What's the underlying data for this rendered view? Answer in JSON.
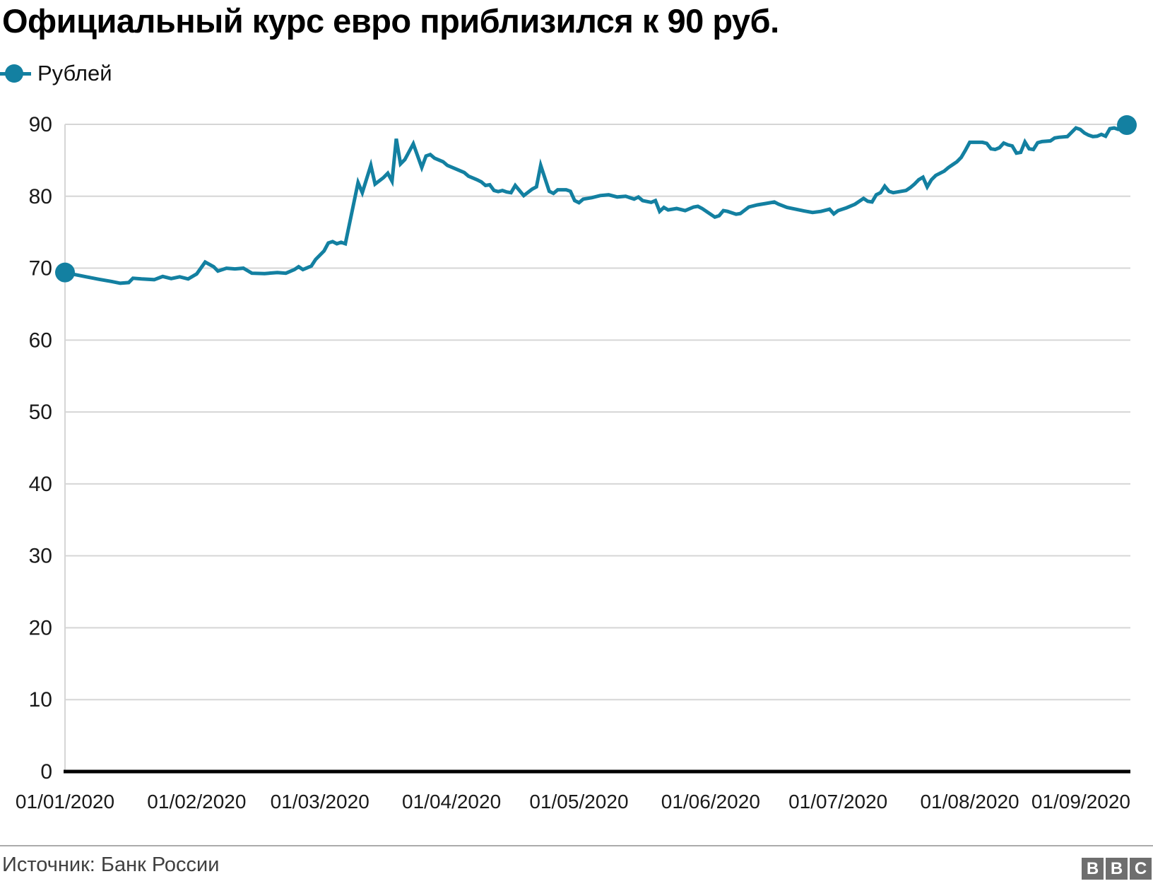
{
  "header": {
    "title": "Официальный курс евро приблизился к 90 руб."
  },
  "legend": {
    "label": "Рублей"
  },
  "footer": {
    "source": "Источник: Банк России",
    "logo_letters": [
      "B",
      "B",
      "C"
    ]
  },
  "colors": {
    "accent": "#1380A1",
    "grid": "#d6d6d6",
    "axis": "#000000",
    "tick_text": "#1a1a1a",
    "source_text": "#404040",
    "logo_gray": "#6e6e6e"
  },
  "chart_data": {
    "type": "line",
    "title": "Официальный курс евро приблизился к 90 руб.",
    "xlabel": "",
    "ylabel": "",
    "x_unit": "days since 01/01/2020",
    "x_range_days": 250,
    "ylim": [
      0,
      90
    ],
    "grid": "horizontal",
    "legend_position": "top-left",
    "y_ticks": [
      0,
      10,
      20,
      30,
      40,
      50,
      60,
      70,
      80,
      90
    ],
    "x_ticks": [
      {
        "label": "01/01/2020",
        "day": 0
      },
      {
        "label": "01/02/2020",
        "day": 31
      },
      {
        "label": "01/03/2020",
        "day": 60
      },
      {
        "label": "01/04/2020",
        "day": 91
      },
      {
        "label": "01/05/2020",
        "day": 121
      },
      {
        "label": "01/06/2020",
        "day": 152
      },
      {
        "label": "01/07/2020",
        "day": 182
      },
      {
        "label": "01/08/2020",
        "day": 213
      },
      {
        "label": "01/09/2020",
        "day": 244
      }
    ],
    "series": [
      {
        "name": "Рублей",
        "start_marker": true,
        "end_marker": true,
        "points": [
          [
            0,
            69.4
          ],
          [
            2,
            69.15
          ],
          [
            5,
            68.8
          ],
          [
            8,
            68.45
          ],
          [
            11,
            68.15
          ],
          [
            13,
            67.9
          ],
          [
            15,
            68.0
          ],
          [
            16,
            68.6
          ],
          [
            18,
            68.5
          ],
          [
            21,
            68.4
          ],
          [
            23,
            68.85
          ],
          [
            25,
            68.55
          ],
          [
            27,
            68.8
          ],
          [
            29,
            68.5
          ],
          [
            31,
            69.2
          ],
          [
            33,
            70.85
          ],
          [
            35,
            70.2
          ],
          [
            36,
            69.6
          ],
          [
            38,
            70.0
          ],
          [
            40,
            69.9
          ],
          [
            42,
            70.0
          ],
          [
            44,
            69.3
          ],
          [
            47,
            69.25
          ],
          [
            50,
            69.4
          ],
          [
            52,
            69.3
          ],
          [
            54,
            69.8
          ],
          [
            55,
            70.2
          ],
          [
            56,
            69.8
          ],
          [
            58,
            70.3
          ],
          [
            59,
            71.2
          ],
          [
            61,
            72.4
          ],
          [
            62,
            73.5
          ],
          [
            63,
            73.7
          ],
          [
            64,
            73.4
          ],
          [
            65,
            73.6
          ],
          [
            66,
            73.4
          ],
          [
            69,
            81.9
          ],
          [
            70,
            80.5
          ],
          [
            72,
            84.3
          ],
          [
            73,
            81.7
          ],
          [
            75,
            82.6
          ],
          [
            76,
            83.2
          ],
          [
            77,
            82.1
          ],
          [
            78,
            88.0
          ],
          [
            79,
            84.5
          ],
          [
            80,
            85.1
          ],
          [
            82,
            87.3
          ],
          [
            84,
            84.0
          ],
          [
            85,
            85.6
          ],
          [
            86,
            85.8
          ],
          [
            87,
            85.3
          ],
          [
            89,
            84.8
          ],
          [
            90,
            84.3
          ],
          [
            92,
            83.8
          ],
          [
            94,
            83.3
          ],
          [
            95,
            82.8
          ],
          [
            97,
            82.3
          ],
          [
            98,
            82.0
          ],
          [
            99,
            81.5
          ],
          [
            100,
            81.6
          ],
          [
            101,
            80.8
          ],
          [
            102,
            80.65
          ],
          [
            103,
            80.8
          ],
          [
            104,
            80.6
          ],
          [
            105,
            80.5
          ],
          [
            106,
            81.5
          ],
          [
            108,
            80.1
          ],
          [
            110,
            81.0
          ],
          [
            111,
            81.3
          ],
          [
            112,
            84.3
          ],
          [
            114,
            80.7
          ],
          [
            115,
            80.4
          ],
          [
            116,
            80.9
          ],
          [
            118,
            80.9
          ],
          [
            119,
            80.7
          ],
          [
            120,
            79.4
          ],
          [
            121,
            79.1
          ],
          [
            122,
            79.6
          ],
          [
            124,
            79.8
          ],
          [
            126,
            80.1
          ],
          [
            128,
            80.2
          ],
          [
            130,
            79.9
          ],
          [
            132,
            80.0
          ],
          [
            134,
            79.6
          ],
          [
            135,
            79.9
          ],
          [
            136,
            79.4
          ],
          [
            138,
            79.15
          ],
          [
            139,
            79.4
          ],
          [
            140,
            77.9
          ],
          [
            141,
            78.45
          ],
          [
            142,
            78.1
          ],
          [
            144,
            78.3
          ],
          [
            146,
            78.0
          ],
          [
            148,
            78.5
          ],
          [
            149,
            78.6
          ],
          [
            150,
            78.3
          ],
          [
            151,
            77.9
          ],
          [
            153,
            77.1
          ],
          [
            154,
            77.3
          ],
          [
            155,
            78.0
          ],
          [
            156,
            77.9
          ],
          [
            158,
            77.5
          ],
          [
            159,
            77.6
          ],
          [
            161,
            78.5
          ],
          [
            163,
            78.8
          ],
          [
            165,
            79.0
          ],
          [
            167,
            79.2
          ],
          [
            168,
            78.9
          ],
          [
            170,
            78.45
          ],
          [
            172,
            78.2
          ],
          [
            174,
            77.95
          ],
          [
            176,
            77.75
          ],
          [
            178,
            77.9
          ],
          [
            180,
            78.2
          ],
          [
            181,
            77.55
          ],
          [
            182,
            78.0
          ],
          [
            184,
            78.4
          ],
          [
            186,
            78.9
          ],
          [
            187,
            79.3
          ],
          [
            188,
            79.7
          ],
          [
            189,
            79.3
          ],
          [
            190,
            79.2
          ],
          [
            191,
            80.2
          ],
          [
            192,
            80.5
          ],
          [
            193,
            81.4
          ],
          [
            194,
            80.7
          ],
          [
            195,
            80.5
          ],
          [
            196,
            80.6
          ],
          [
            198,
            80.8
          ],
          [
            199,
            81.2
          ],
          [
            200,
            81.7
          ],
          [
            201,
            82.3
          ],
          [
            202,
            82.65
          ],
          [
            203,
            81.3
          ],
          [
            204,
            82.3
          ],
          [
            205,
            82.9
          ],
          [
            207,
            83.5
          ],
          [
            208,
            84.0
          ],
          [
            209,
            84.4
          ],
          [
            210,
            84.8
          ],
          [
            211,
            85.4
          ],
          [
            212,
            86.4
          ],
          [
            213,
            87.5
          ],
          [
            214,
            87.5
          ],
          [
            216,
            87.5
          ],
          [
            217,
            87.35
          ],
          [
            218,
            86.6
          ],
          [
            219,
            86.5
          ],
          [
            220,
            86.75
          ],
          [
            221,
            87.4
          ],
          [
            222,
            87.15
          ],
          [
            223,
            87.0
          ],
          [
            224,
            86.0
          ],
          [
            225,
            86.1
          ],
          [
            226,
            87.55
          ],
          [
            227,
            86.6
          ],
          [
            228,
            86.5
          ],
          [
            229,
            87.45
          ],
          [
            230,
            87.6
          ],
          [
            232,
            87.7
          ],
          [
            233,
            88.1
          ],
          [
            234,
            88.2
          ],
          [
            236,
            88.3
          ],
          [
            238,
            89.5
          ],
          [
            239,
            89.3
          ],
          [
            240,
            88.8
          ],
          [
            241,
            88.5
          ],
          [
            242,
            88.3
          ],
          [
            243,
            88.35
          ],
          [
            244,
            88.6
          ],
          [
            245,
            88.35
          ],
          [
            246,
            89.4
          ],
          [
            247,
            89.5
          ],
          [
            248,
            89.3
          ],
          [
            249,
            89.45
          ],
          [
            250,
            89.9
          ]
        ]
      }
    ]
  }
}
